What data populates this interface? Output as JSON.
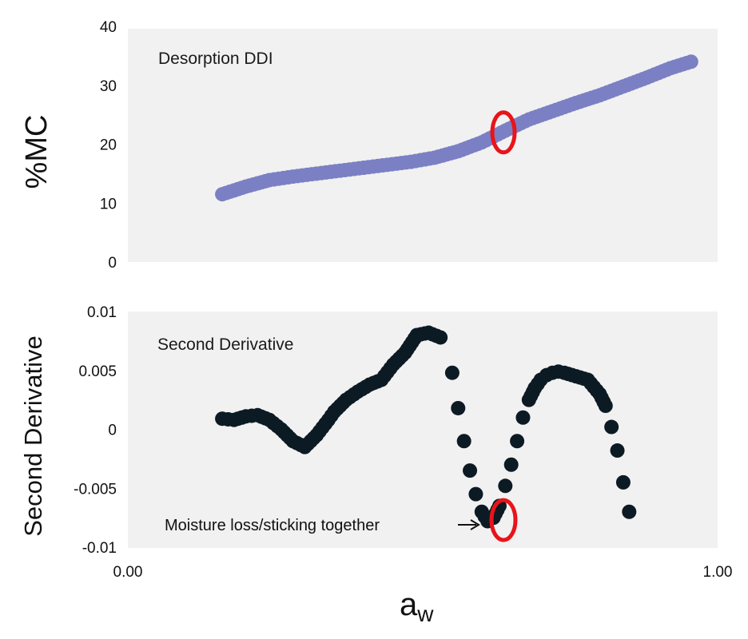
{
  "chart_data": [
    {
      "type": "scatter",
      "panel": "top",
      "annotation": "Desorption DDI",
      "ylabel": "%MC",
      "xlim": [
        0,
        1
      ],
      "ylim": [
        0,
        40
      ],
      "yticks": [
        "0",
        "10",
        "20",
        "30",
        "40"
      ],
      "grid": false,
      "marker_color": "#7b80c4",
      "highlight_color": "#e8141a",
      "highlight": {
        "x": 0.645,
        "y": 22
      },
      "series": [
        {
          "x": [
            0.16,
            0.2,
            0.24,
            0.28,
            0.32,
            0.36,
            0.4,
            0.44,
            0.48,
            0.52,
            0.56,
            0.6,
            0.64,
            0.68,
            0.72,
            0.76,
            0.8,
            0.84,
            0.88,
            0.92,
            0.955
          ],
          "y": [
            11.5,
            12.8,
            13.9,
            14.5,
            15.0,
            15.5,
            16.0,
            16.5,
            17.0,
            17.7,
            18.8,
            20.3,
            22.3,
            24.2,
            25.6,
            27.0,
            28.3,
            29.8,
            31.3,
            32.9,
            34.0
          ]
        }
      ]
    },
    {
      "type": "scatter",
      "panel": "bottom",
      "annotation": "Second Derivative",
      "ylabel": "Second Derivative",
      "xlabel": "a",
      "xlabel_sub": "w",
      "xlim": [
        0,
        1
      ],
      "ylim": [
        -0.01,
        0.01
      ],
      "xticks": [
        "0.00",
        "1.00"
      ],
      "yticks": [
        "-0.01",
        "-0.005",
        "0",
        "0.005",
        "0.01"
      ],
      "grid": false,
      "marker_color": "#0c1a24",
      "highlight_color": "#e8141a",
      "highlight": {
        "x": 0.645,
        "y": -0.0077
      },
      "callout": "Moisture loss/sticking together",
      "series": [
        {
          "x": [
            0.16,
            0.18,
            0.2,
            0.22,
            0.24,
            0.26,
            0.28,
            0.3,
            0.32,
            0.34,
            0.35,
            0.37,
            0.39,
            0.41,
            0.43,
            0.45,
            0.47,
            0.49,
            0.51,
            0.53,
            0.55,
            0.56,
            0.57,
            0.58,
            0.59,
            0.6,
            0.61,
            0.62,
            0.63,
            0.64,
            0.65,
            0.66,
            0.67,
            0.68,
            0.69,
            0.7,
            0.71,
            0.72,
            0.73,
            0.74,
            0.76,
            0.78,
            0.8,
            0.81,
            0.82,
            0.83,
            0.84,
            0.85
          ],
          "y": [
            0.0009,
            0.0008,
            0.0011,
            0.0012,
            0.0008,
            0.0,
            -0.001,
            -0.0015,
            -0.0005,
            0.0008,
            0.0015,
            0.0025,
            0.0032,
            0.0038,
            0.0042,
            0.0055,
            0.0065,
            0.008,
            0.0082,
            0.0078,
            0.0048,
            0.0018,
            -0.001,
            -0.0035,
            -0.0055,
            -0.007,
            -0.0078,
            -0.0075,
            -0.0065,
            -0.0048,
            -0.003,
            -0.001,
            0.001,
            0.0025,
            0.0035,
            0.0042,
            0.0046,
            0.0048,
            0.0049,
            0.0048,
            0.0045,
            0.0042,
            0.003,
            0.002,
            0.0002,
            -0.0018,
            -0.0045,
            -0.007
          ]
        }
      ]
    }
  ]
}
